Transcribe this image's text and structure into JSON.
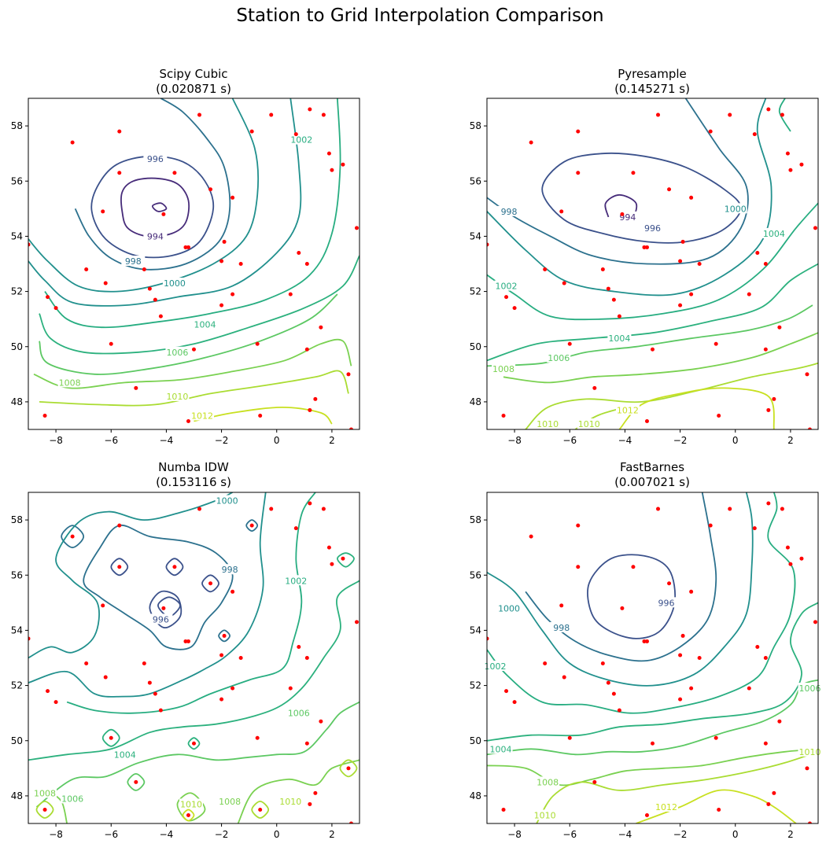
{
  "suptitle": "Station to Grid Interpolation Comparison",
  "panels": [
    {
      "title": "Scipy Cubic",
      "subtitle": "(0.020871 s)"
    },
    {
      "title": "Pyresample",
      "subtitle": "(0.145271 s)"
    },
    {
      "title": "Numba IDW",
      "subtitle": "(0.153116 s)"
    },
    {
      "title": "FastBarnes",
      "subtitle": "(0.007021 s)"
    }
  ],
  "chart_data": [
    {
      "type": "contour",
      "title": "Scipy Cubic (0.020871 s)",
      "xlim": [
        -9,
        3
      ],
      "ylim": [
        47,
        59
      ],
      "xticks": [
        -8,
        -6,
        -4,
        -2,
        0,
        2
      ],
      "yticks": [
        48,
        50,
        52,
        54,
        56,
        58
      ],
      "levels": [
        994,
        996,
        998,
        1000,
        1002,
        1004,
        1006,
        1008,
        1010,
        1012
      ],
      "contour_labels": [
        {
          "text": "996",
          "x": -4.4,
          "y": 56.8,
          "level": 996
        },
        {
          "text": "994",
          "x": -4.4,
          "y": 54.0,
          "level": 994
        },
        {
          "text": "998",
          "x": -5.2,
          "y": 53.1,
          "level": 998
        },
        {
          "text": "1000",
          "x": -3.7,
          "y": 52.3,
          "level": 1000
        },
        {
          "text": "1002",
          "x": 0.9,
          "y": 57.5,
          "level": 1002
        },
        {
          "text": "1004",
          "x": -2.6,
          "y": 50.8,
          "level": 1004
        },
        {
          "text": "1006",
          "x": -3.6,
          "y": 49.8,
          "level": 1006
        },
        {
          "text": "1008",
          "x": -7.5,
          "y": 48.7,
          "level": 1008
        },
        {
          "text": "1010",
          "x": -3.6,
          "y": 48.2,
          "level": 1010
        },
        {
          "text": "1012",
          "x": -2.7,
          "y": 47.5,
          "level": 1012
        }
      ]
    },
    {
      "type": "contour",
      "title": "Pyresample (0.145271 s)",
      "xlim": [
        -9,
        3
      ],
      "ylim": [
        47,
        59
      ],
      "xticks": [
        -8,
        -6,
        -4,
        -2,
        0,
        2
      ],
      "yticks": [
        48,
        50,
        52,
        54,
        56,
        58
      ],
      "levels": [
        994,
        996,
        998,
        1000,
        1002,
        1004,
        1006,
        1008,
        1010,
        1012
      ],
      "contour_labels": [
        {
          "text": "998",
          "x": -8.2,
          "y": 54.9,
          "level": 998
        },
        {
          "text": "994",
          "x": -3.9,
          "y": 54.7,
          "level": 994
        },
        {
          "text": "996",
          "x": -3.0,
          "y": 54.3,
          "level": 996
        },
        {
          "text": "1000",
          "x": 0.0,
          "y": 55.0,
          "level": 1000
        },
        {
          "text": "1004",
          "x": 1.4,
          "y": 54.1,
          "level": 1004
        },
        {
          "text": "1002",
          "x": -8.3,
          "y": 52.2,
          "level": 1002
        },
        {
          "text": "1004",
          "x": -4.2,
          "y": 50.3,
          "level": 1004
        },
        {
          "text": "1006",
          "x": -6.4,
          "y": 49.6,
          "level": 1006
        },
        {
          "text": "1008",
          "x": -8.4,
          "y": 49.2,
          "level": 1008
        },
        {
          "text": "1010",
          "x": -6.8,
          "y": 47.2,
          "level": 1010
        },
        {
          "text": "1010",
          "x": -5.3,
          "y": 47.2,
          "level": 1010
        },
        {
          "text": "1012",
          "x": -3.9,
          "y": 47.7,
          "level": 1012
        }
      ]
    },
    {
      "type": "contour",
      "title": "Numba IDW (0.153116 s)",
      "xlim": [
        -9,
        3
      ],
      "ylim": [
        47,
        59
      ],
      "xticks": [
        -8,
        -6,
        -4,
        -2,
        0,
        2
      ],
      "yticks": [
        48,
        50,
        52,
        54,
        56,
        58
      ],
      "levels": [
        994,
        996,
        998,
        1000,
        1002,
        1004,
        1006,
        1008,
        1010,
        1012
      ],
      "contour_labels": [
        {
          "text": "1000",
          "x": -1.8,
          "y": 58.7,
          "level": 1000
        },
        {
          "text": "998",
          "x": -1.7,
          "y": 56.2,
          "level": 998
        },
        {
          "text": "1002",
          "x": 0.7,
          "y": 55.8,
          "level": 1002
        },
        {
          "text": "996",
          "x": -4.2,
          "y": 54.4,
          "level": 996
        },
        {
          "text": "1006",
          "x": 0.8,
          "y": 51.0,
          "level": 1006
        },
        {
          "text": "1004",
          "x": -5.5,
          "y": 49.5,
          "level": 1004
        },
        {
          "text": "1008",
          "x": -8.4,
          "y": 48.1,
          "level": 1008
        },
        {
          "text": "1006",
          "x": -7.4,
          "y": 47.9,
          "level": 1006
        },
        {
          "text": "1010",
          "x": -3.1,
          "y": 47.7,
          "level": 1010
        },
        {
          "text": "1008",
          "x": -1.7,
          "y": 47.8,
          "level": 1008
        },
        {
          "text": "1010",
          "x": 0.5,
          "y": 47.8,
          "level": 1010
        }
      ]
    },
    {
      "type": "contour",
      "title": "FastBarnes (0.007021 s)",
      "xlim": [
        -9,
        3
      ],
      "ylim": [
        47,
        59
      ],
      "xticks": [
        -8,
        -6,
        -4,
        -2,
        0,
        2
      ],
      "yticks": [
        48,
        50,
        52,
        54,
        56,
        58
      ],
      "levels": [
        996,
        998,
        1000,
        1002,
        1004,
        1006,
        1008,
        1010,
        1012
      ],
      "contour_labels": [
        {
          "text": "996",
          "x": -2.5,
          "y": 55.0,
          "level": 996
        },
        {
          "text": "1000",
          "x": -8.2,
          "y": 54.8,
          "level": 1000
        },
        {
          "text": "998",
          "x": -6.3,
          "y": 54.1,
          "level": 998
        },
        {
          "text": "1002",
          "x": -8.7,
          "y": 52.7,
          "level": 1002
        },
        {
          "text": "1006",
          "x": 2.7,
          "y": 51.9,
          "level": 1006
        },
        {
          "text": "1004",
          "x": -8.5,
          "y": 49.7,
          "level": 1004
        },
        {
          "text": "1010",
          "x": 2.7,
          "y": 49.6,
          "level": 1010
        },
        {
          "text": "1008",
          "x": -6.8,
          "y": 48.5,
          "level": 1008
        },
        {
          "text": "1010",
          "x": -6.9,
          "y": 47.3,
          "level": 1010
        },
        {
          "text": "1012",
          "x": -2.5,
          "y": 47.6,
          "level": 1012
        }
      ]
    }
  ],
  "stations": [
    [
      -2.8,
      58.4
    ],
    [
      -0.2,
      58.4
    ],
    [
      1.2,
      58.6
    ],
    [
      1.7,
      58.4
    ],
    [
      -5.7,
      57.8
    ],
    [
      -0.9,
      57.8
    ],
    [
      0.7,
      57.7
    ],
    [
      -7.4,
      57.4
    ],
    [
      1.9,
      57.0
    ],
    [
      2.4,
      56.6
    ],
    [
      2.0,
      56.4
    ],
    [
      -5.7,
      56.3
    ],
    [
      -3.7,
      56.3
    ],
    [
      -2.4,
      55.7
    ],
    [
      -1.6,
      55.4
    ],
    [
      -4.1,
      54.8
    ],
    [
      -6.3,
      54.9
    ],
    [
      -9.0,
      53.7
    ],
    [
      2.9,
      54.3
    ],
    [
      -1.9,
      53.8
    ],
    [
      -3.3,
      53.6
    ],
    [
      -3.2,
      53.6
    ],
    [
      -2.0,
      53.1
    ],
    [
      -1.3,
      53.0
    ],
    [
      0.8,
      53.4
    ],
    [
      1.1,
      53.0
    ],
    [
      -6.9,
      52.8
    ],
    [
      -4.8,
      52.8
    ],
    [
      -6.2,
      52.3
    ],
    [
      -4.6,
      52.1
    ],
    [
      -8.3,
      51.8
    ],
    [
      -1.6,
      51.9
    ],
    [
      0.5,
      51.9
    ],
    [
      -4.4,
      51.7
    ],
    [
      -8.0,
      51.4
    ],
    [
      -2.0,
      51.5
    ],
    [
      -4.2,
      51.1
    ],
    [
      1.6,
      50.7
    ],
    [
      -6.0,
      50.1
    ],
    [
      -0.7,
      50.1
    ],
    [
      -3.0,
      49.9
    ],
    [
      1.1,
      49.9
    ],
    [
      2.6,
      49.0
    ],
    [
      -5.1,
      48.5
    ],
    [
      1.4,
      48.1
    ],
    [
      -8.4,
      47.5
    ],
    [
      -0.6,
      47.5
    ],
    [
      1.2,
      47.7
    ],
    [
      -3.2,
      47.3
    ],
    [
      2.7,
      47.0
    ]
  ],
  "colors": {
    "station": "#ff0000",
    "colormap": "viridis",
    "level_colors": {
      "994": "#472c7a",
      "996": "#3b518b",
      "998": "#2c718e",
      "1000": "#21908d",
      "1002": "#27ad81",
      "1004": "#2cb17e",
      "1006": "#5cc863",
      "1008": "#7ad151",
      "1010": "#aadc32",
      "1012": "#c8e020"
    }
  }
}
